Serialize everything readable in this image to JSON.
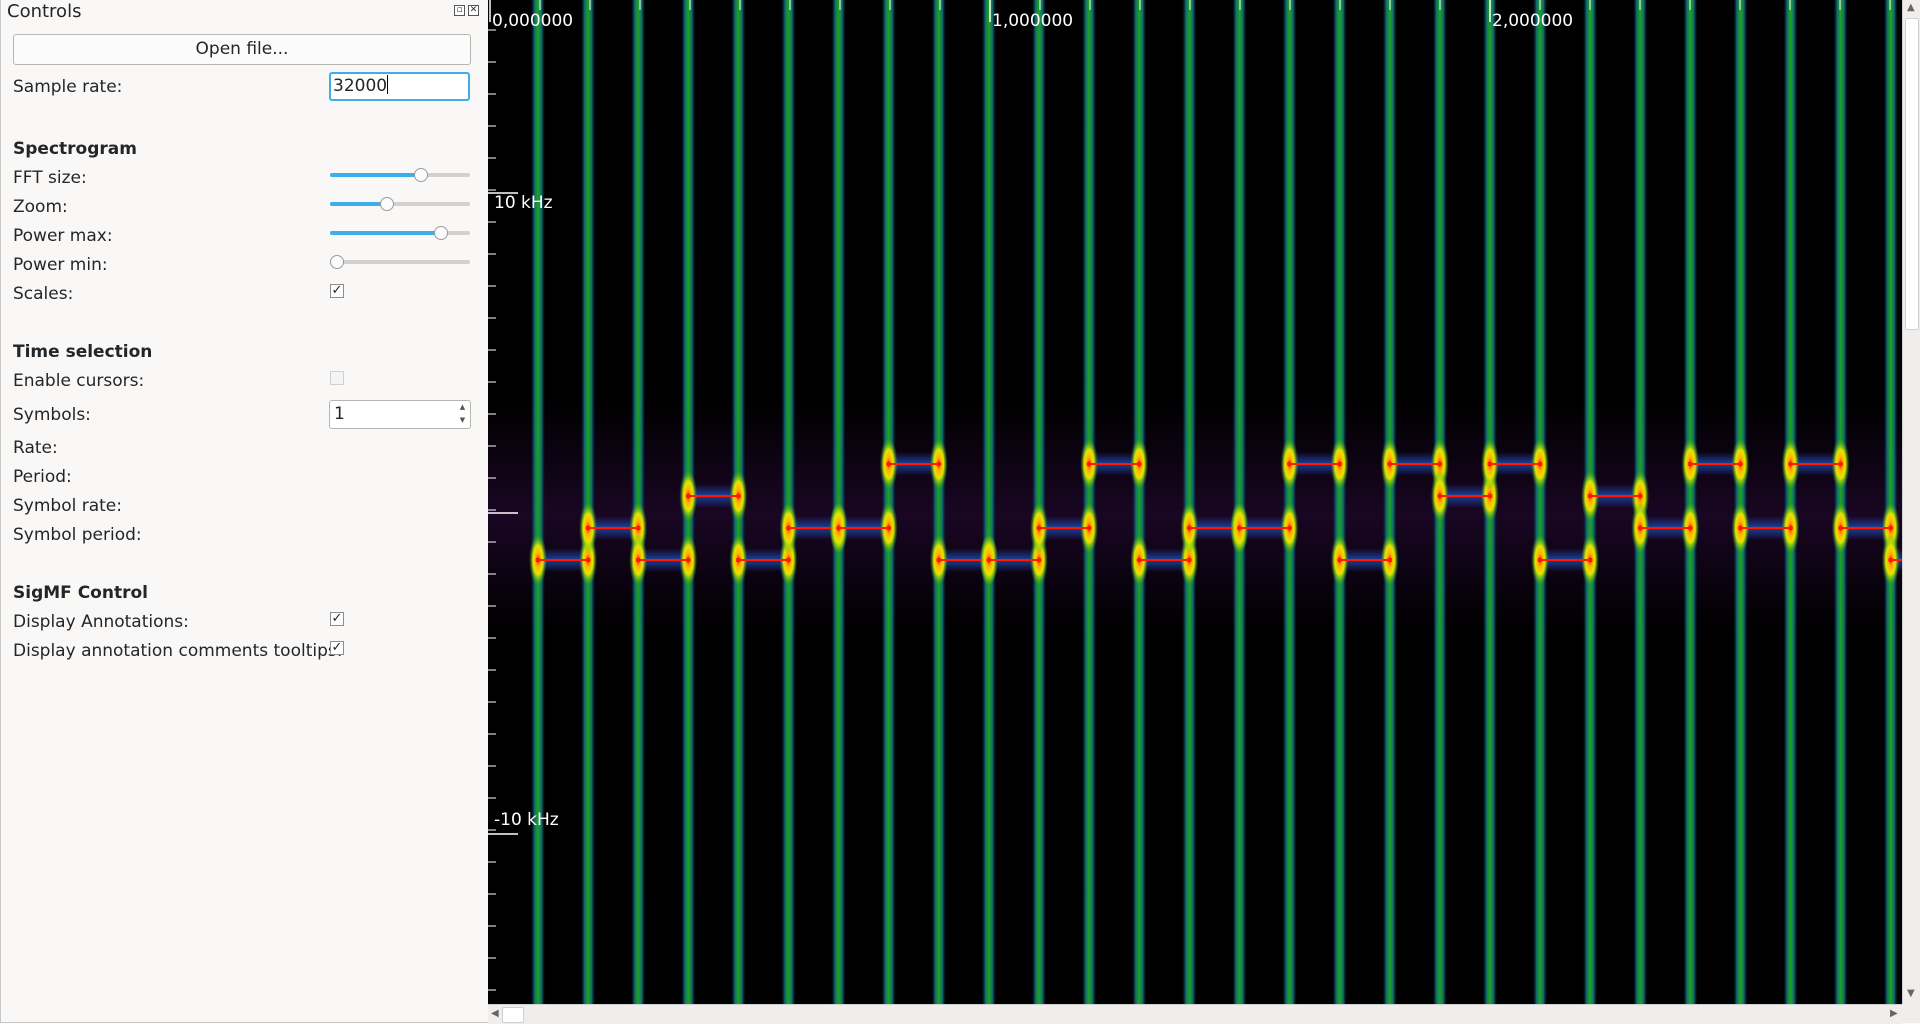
{
  "dock": {
    "title": "Controls",
    "float_icon": "float-icon",
    "close_icon": "close-icon",
    "open_file_label": "Open file...",
    "sample_rate_label": "Sample rate:",
    "sample_rate_value": "32000",
    "spectrogram": {
      "heading": "Spectrogram",
      "fft_size_label": "FFT size:",
      "fft_size_level": 0.65,
      "zoom_label": "Zoom:",
      "zoom_level": 0.41,
      "power_max_label": "Power max:",
      "power_max_level": 0.79,
      "power_min_label": "Power min:",
      "power_min_level": 0.05,
      "scales_label": "Scales:",
      "scales_checked": true
    },
    "time_selection": {
      "heading": "Time selection",
      "enable_cursors_label": "Enable cursors:",
      "enable_cursors_checked": false,
      "symbols_label": "Symbols:",
      "symbols_value": "1",
      "rate_label": "Rate:",
      "period_label": "Period:",
      "symbol_rate_label": "Symbol rate:",
      "symbol_period_label": "Symbol period:"
    },
    "sigmf": {
      "heading": "SigMF Control",
      "display_annotations_label": "Display Annotations:",
      "display_annotations_checked": true,
      "tooltips_label": "Display annotation comments tooltips:",
      "tooltips_checked": true
    }
  },
  "plot": {
    "time_ticks": [
      "0,000000",
      "1,000000",
      "2,000000"
    ],
    "freq_labels": [
      "10 kHz",
      "-10 kHz"
    ],
    "symbol_levels": [
      1,
      0,
      1,
      2,
      1,
      0,
      0,
      3,
      1,
      1,
      0,
      3,
      1,
      0,
      0,
      3,
      1,
      3,
      2,
      3,
      1,
      2,
      0,
      3,
      0,
      3,
      0,
      1
    ],
    "colors": {
      "background": "#000000",
      "burst_green": "#1fa31f",
      "burst_yellow": "#e6e600",
      "tone_red": "#ff1a00",
      "tone_blue": "#1c3f9a"
    }
  }
}
